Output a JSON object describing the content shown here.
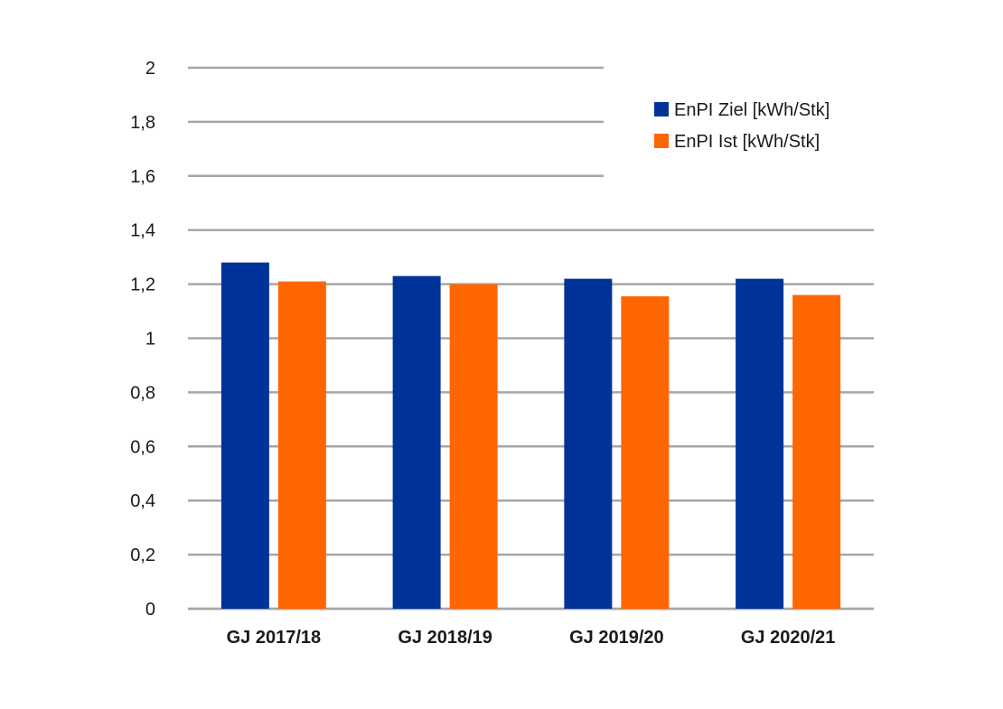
{
  "chart_data": {
    "type": "bar",
    "title": "",
    "xlabel": "",
    "ylabel": "",
    "categories": [
      "GJ 2017/18",
      "GJ 2018/19",
      "GJ 2019/20",
      "GJ 2020/21"
    ],
    "series": [
      {
        "name": "EnPI Ziel [kWh/Stk]",
        "color": "#003399",
        "values": [
          1.28,
          1.23,
          1.22,
          1.22
        ]
      },
      {
        "name": "EnPI Ist [kWh/Stk]",
        "color": "#ff6600",
        "values": [
          1.21,
          1.2,
          1.155,
          1.16
        ]
      }
    ],
    "ylim": [
      0,
      2
    ],
    "yticks": [
      0,
      0.2,
      0.4,
      0.6,
      0.8,
      1,
      1.2,
      1.4,
      1.6,
      1.8,
      2
    ],
    "ytick_labels": [
      "0",
      "0,2",
      "0,4",
      "0,6",
      "0,8",
      "1",
      "1,2",
      "1,4",
      "1,6",
      "1,8",
      "2"
    ],
    "grid": true,
    "gridline_color": "#a6a6a6",
    "legend_position": "top-right"
  }
}
